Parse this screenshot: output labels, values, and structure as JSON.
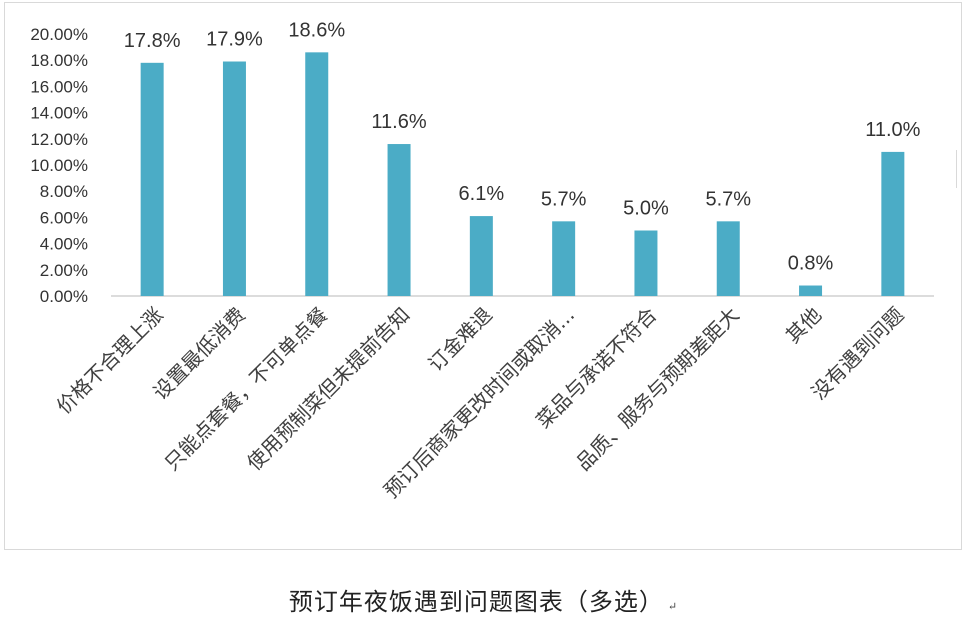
{
  "chart_data": {
    "type": "bar",
    "categories": [
      "价格不合理上涨",
      "设置最低消费",
      "只能点套餐，不可单点餐",
      "使用预制菜但未提前告知",
      "订金难退",
      "预订后商家更改时间或取消...",
      "菜品与承诺不符合",
      "品质、服务与预期差距大",
      "其他",
      "没有遇到问题"
    ],
    "values": [
      17.8,
      17.9,
      18.6,
      11.6,
      6.1,
      5.7,
      5.0,
      5.7,
      0.8,
      11.0
    ],
    "data_labels": [
      "17.8%",
      "17.9%",
      "18.6%",
      "11.6%",
      "6.1%",
      "5.7%",
      "5.0%",
      "5.7%",
      "0.8%",
      "11.0%"
    ],
    "y_ticks": [
      "0.00%",
      "2.00%",
      "4.00%",
      "6.00%",
      "8.00%",
      "10.00%",
      "12.00%",
      "14.00%",
      "16.00%",
      "18.00%",
      "20.00%"
    ],
    "ylim": [
      0,
      20
    ],
    "grid": false,
    "bar_color": "#4BACC6",
    "title": "",
    "xlabel": "",
    "ylabel": ""
  },
  "caption": {
    "text": "预订年夜饭遇到问题图表（多选）",
    "mark": "↵"
  }
}
